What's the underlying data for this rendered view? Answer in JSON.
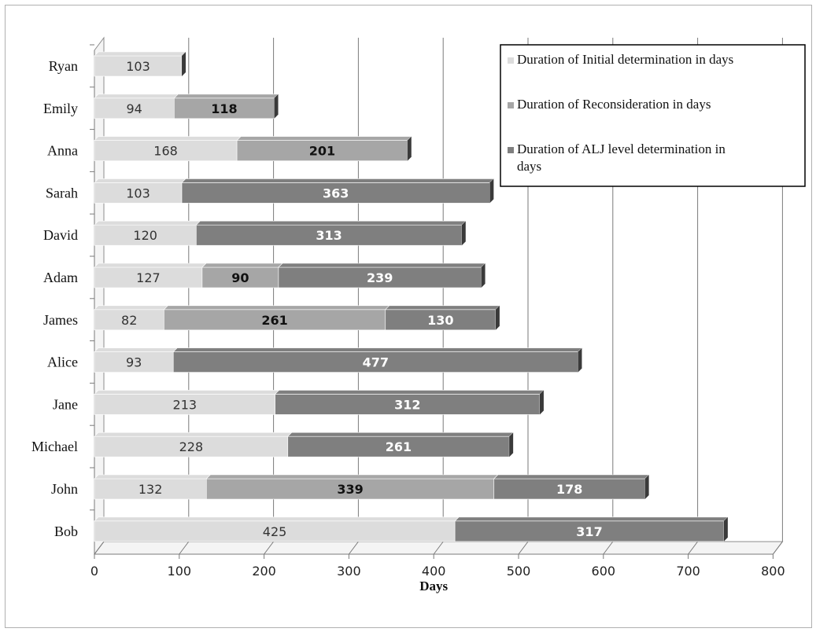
{
  "chart_data": {
    "type": "bar",
    "orientation": "horizontal",
    "stacked": true,
    "style": "3d",
    "title": "",
    "xlabel": "Days",
    "ylabel": "",
    "xlim": [
      0,
      800
    ],
    "x_ticks": [
      0,
      100,
      200,
      300,
      400,
      500,
      600,
      700,
      800
    ],
    "grid": true,
    "legend_position": "top-right",
    "categories": [
      "Ryan",
      "Emily",
      "Anna",
      "Sarah",
      "David",
      "Adam",
      "James",
      "Alice",
      "Jane",
      "Michael",
      "John",
      "Bob"
    ],
    "series": [
      {
        "name": "Duration of Initial determination in days",
        "legend_lines": [
          "Duration of Initial determination in days"
        ],
        "color": "#dcdcdc",
        "label_color": "#333333",
        "values": [
          103,
          94,
          168,
          103,
          120,
          127,
          82,
          93,
          213,
          228,
          132,
          425
        ]
      },
      {
        "name": "Duration of Reconsideration in days",
        "legend_lines": [
          "Duration of Reconsideration in days"
        ],
        "color": "#a6a6a6",
        "label_color": "#111111",
        "values": [
          null,
          118,
          201,
          null,
          null,
          90,
          261,
          null,
          null,
          null,
          339,
          null
        ]
      },
      {
        "name": "Duration of ALJ level determination in days",
        "legend_lines": [
          "Duration of ALJ level determination in",
          "days"
        ],
        "color": "#7f7f7f",
        "label_color": "#ffffff",
        "values": [
          null,
          null,
          null,
          363,
          313,
          239,
          130,
          477,
          312,
          261,
          178,
          317
        ]
      }
    ]
  }
}
